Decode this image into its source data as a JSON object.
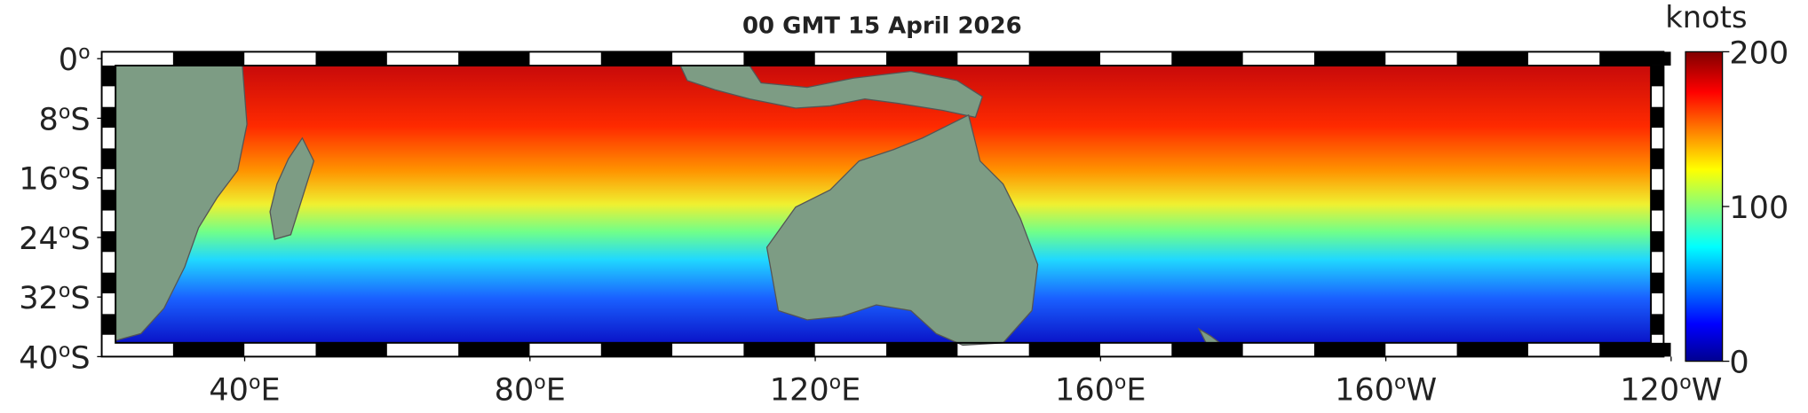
{
  "map": {
    "title": "00 GMT 15 April 2026",
    "lat_ticks": [
      {
        "value": 0,
        "number": "0",
        "degree": "o"
      },
      {
        "value": -8,
        "number": "8",
        "degree": "o",
        "hemisphere": "S"
      },
      {
        "value": -16,
        "number": "16",
        "degree": "o",
        "hemisphere": "S"
      },
      {
        "value": -24,
        "number": "24",
        "degree": "o",
        "hemisphere": "S"
      },
      {
        "value": -32,
        "number": "32",
        "degree": "o",
        "hemisphere": "S"
      },
      {
        "value": -40,
        "number": "40",
        "degree": "o",
        "hemisphere": "S"
      }
    ],
    "lon_ticks": [
      {
        "value": 40,
        "number": "40",
        "degree": "o",
        "hemisphere": "E"
      },
      {
        "value": 80,
        "number": "80",
        "degree": "o",
        "hemisphere": "E"
      },
      {
        "value": 120,
        "number": "120",
        "degree": "o",
        "hemisphere": "E"
      },
      {
        "value": 160,
        "number": "160",
        "degree": "o",
        "hemisphere": "E"
      },
      {
        "value": -160,
        "number": "160",
        "degree": "o",
        "hemisphere": "W"
      },
      {
        "value": -120,
        "number": "120",
        "degree": "o",
        "hemisphere": "W"
      }
    ],
    "colorbar": {
      "label": "knots",
      "lim": [
        0,
        200
      ],
      "ticks": [
        0,
        100,
        200
      ]
    }
  }
}
